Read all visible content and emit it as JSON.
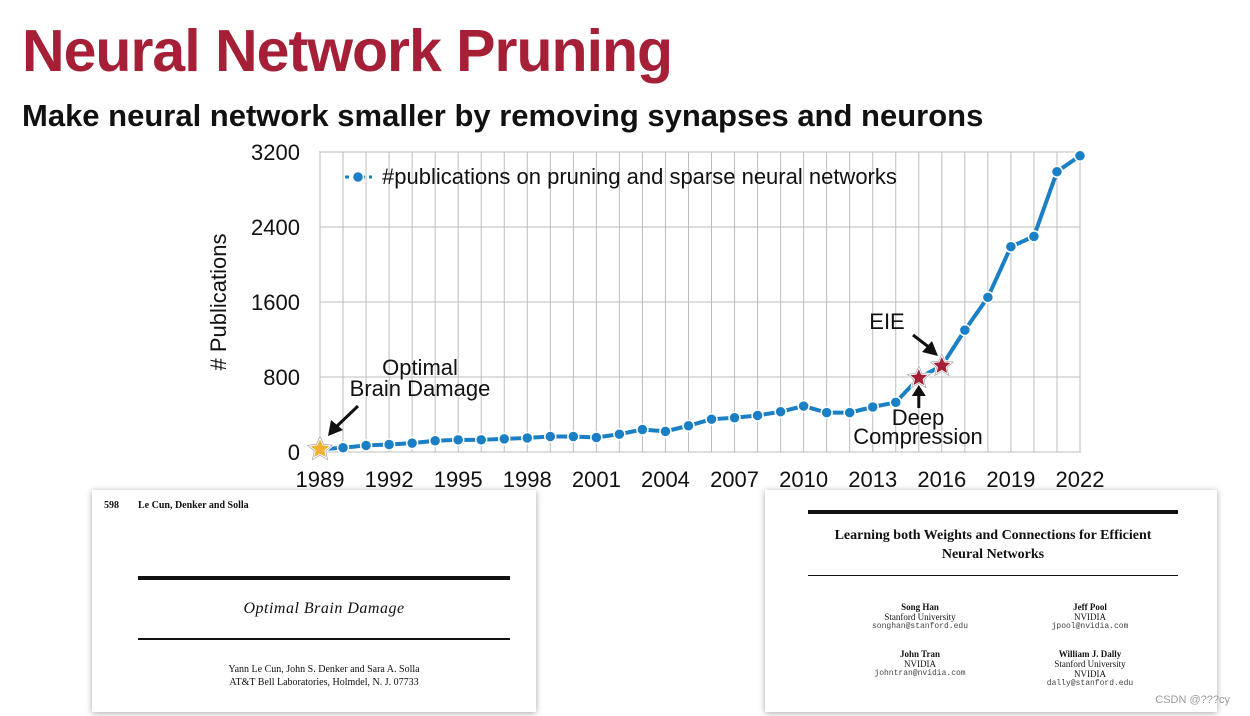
{
  "slide": {
    "title": "Neural Network Pruning",
    "subtitle": "Make neural network smaller by removing synapses and neurons",
    "title_color": "#a51f36"
  },
  "chart_data": {
    "type": "line",
    "ylabel": "# Publications",
    "xlabel": "",
    "ylim": [
      0,
      3200
    ],
    "xlim": [
      1989,
      2022
    ],
    "yticks": [
      0,
      800,
      1600,
      2400,
      3200
    ],
    "xticks": [
      1989,
      1992,
      1995,
      1998,
      2001,
      2004,
      2007,
      2010,
      2013,
      2016,
      2019,
      2022
    ],
    "grid": true,
    "legend_position": "top-left",
    "series": [
      {
        "name": "#publications on pruning and sparse neural networks",
        "color": "#1a7fc4",
        "x": [
          1989,
          1990,
          1991,
          1992,
          1993,
          1994,
          1995,
          1996,
          1997,
          1998,
          1999,
          2000,
          2001,
          2002,
          2003,
          2004,
          2005,
          2006,
          2007,
          2008,
          2009,
          2010,
          2011,
          2012,
          2013,
          2014,
          2015,
          2016,
          2017,
          2018,
          2019,
          2020,
          2021,
          2022
        ],
        "y": [
          30,
          45,
          70,
          80,
          95,
          120,
          130,
          130,
          140,
          150,
          165,
          165,
          155,
          190,
          240,
          220,
          280,
          350,
          365,
          390,
          430,
          490,
          420,
          420,
          480,
          530,
          790,
          920,
          1300,
          1650,
          2190,
          2300,
          2990,
          3160
        ]
      }
    ],
    "annotations": [
      {
        "text_lines": [
          "Optimal",
          "Brain Damage"
        ],
        "x": 1989,
        "y": 30,
        "marker": "star",
        "marker_color": "#f2b233"
      },
      {
        "text_lines": [
          "EIE"
        ],
        "x": 2016,
        "y": 920,
        "marker": "star",
        "marker_color": "#a51f36"
      },
      {
        "text_lines": [
          "Deep",
          "Compression"
        ],
        "x": 2015,
        "y": 790,
        "marker": "star",
        "marker_color": "#a51f36"
      }
    ]
  },
  "paper_left": {
    "page_number": "598",
    "running_head": "Le Cun, Denker and Solla",
    "title": "Optimal Brain Damage",
    "authors": "Yann Le Cun, John S. Denker and Sara A. Solla",
    "affiliation": "AT&T Bell Laboratories, Holmdel, N. J. 07733"
  },
  "paper_right": {
    "title_line1": "Learning both Weights and Connections for Efficient",
    "title_line2": "Neural Networks",
    "authors": [
      {
        "name": "Song Han",
        "affiliation": "Stanford University",
        "email": "songhan@stanford.edu"
      },
      {
        "name": "Jeff Pool",
        "affiliation": "NVIDIA",
        "email": "jpool@nvidia.com"
      },
      {
        "name": "John Tran",
        "affiliation": "NVIDIA",
        "email": "johntran@nvidia.com"
      },
      {
        "name": "William J. Dally",
        "affiliation": "Stanford University",
        "affiliation2": "NVIDIA",
        "email": "dally@stanford.edu"
      }
    ]
  },
  "watermark": "CSDN @???cy"
}
